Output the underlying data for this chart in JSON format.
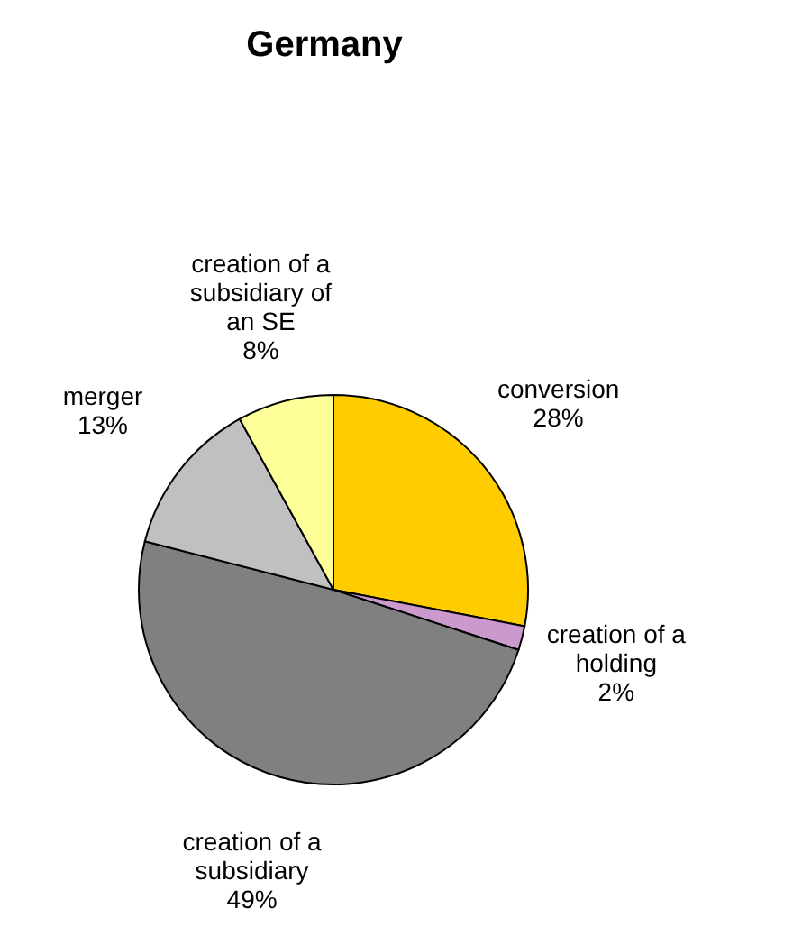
{
  "chart_data": {
    "type": "pie",
    "title": "Germany",
    "categories": [
      "conversion",
      "creation of a holding",
      "creation of a subsidiary",
      "merger",
      "creation of a subsidiary of an SE"
    ],
    "values": [
      28,
      2,
      49,
      13,
      8
    ],
    "value_labels": [
      "28%",
      "2%",
      "49%",
      "13%",
      "8%"
    ],
    "colors": [
      "#ffcc00",
      "#cc99cc",
      "#808080",
      "#c0c0c0",
      "#ffff99"
    ],
    "legend": false
  }
}
